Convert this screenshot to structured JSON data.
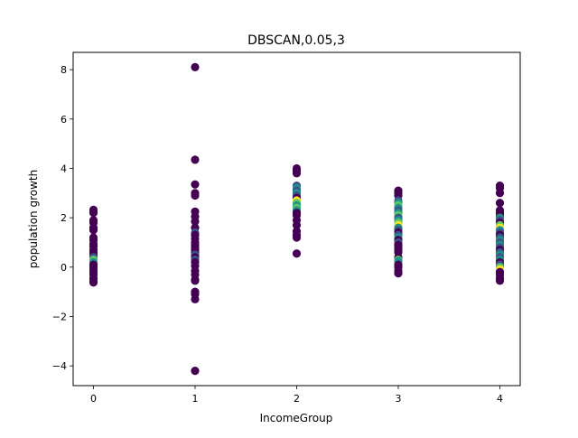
{
  "chart_data": {
    "type": "scatter",
    "title": "DBSCAN,0.05,3",
    "xlabel": "IncomeGroup",
    "ylabel": "population growth",
    "xlim": [
      -0.2,
      4.2
    ],
    "ylim": [
      -4.8,
      8.7
    ],
    "x_ticks": [
      0,
      1,
      2,
      3,
      4
    ],
    "x_tick_labels": [
      "0",
      "1",
      "2",
      "3",
      "4"
    ],
    "y_ticks": [
      -4,
      -2,
      0,
      2,
      4,
      6,
      8
    ],
    "y_tick_labels": [
      "−4",
      "−2",
      "0",
      "2",
      "4",
      "6",
      "8"
    ],
    "grid": false,
    "colormap": "viridis",
    "colors": {
      "noise": "#440154",
      "c1": "#3b528b",
      "c2": "#21918c",
      "c3": "#5ec962",
      "c4": "#fde725"
    },
    "points": [
      {
        "x": 0,
        "y": 2.32,
        "c": "noise"
      },
      {
        "x": 0,
        "y": 2.2,
        "c": "noise"
      },
      {
        "x": 0,
        "y": 1.9,
        "c": "noise"
      },
      {
        "x": 0,
        "y": 1.8,
        "c": "noise"
      },
      {
        "x": 0,
        "y": 1.6,
        "c": "noise"
      },
      {
        "x": 0,
        "y": 1.55,
        "c": "noise"
      },
      {
        "x": 0,
        "y": 1.5,
        "c": "noise"
      },
      {
        "x": 0,
        "y": 1.2,
        "c": "noise"
      },
      {
        "x": 0,
        "y": 1.1,
        "c": "noise"
      },
      {
        "x": 0,
        "y": 0.95,
        "c": "noise"
      },
      {
        "x": 0,
        "y": 0.85,
        "c": "noise"
      },
      {
        "x": 0,
        "y": 0.7,
        "c": "noise"
      },
      {
        "x": 0,
        "y": 0.6,
        "c": "noise"
      },
      {
        "x": 0,
        "y": 0.5,
        "c": "noise"
      },
      {
        "x": 0,
        "y": 0.4,
        "c": "c1"
      },
      {
        "x": 0,
        "y": 0.3,
        "c": "c3"
      },
      {
        "x": 0,
        "y": 0.2,
        "c": "c2"
      },
      {
        "x": 0,
        "y": 0.1,
        "c": "noise"
      },
      {
        "x": 0,
        "y": 0.0,
        "c": "noise"
      },
      {
        "x": 0,
        "y": -0.1,
        "c": "noise"
      },
      {
        "x": 0,
        "y": -0.2,
        "c": "noise"
      },
      {
        "x": 0,
        "y": -0.3,
        "c": "noise"
      },
      {
        "x": 0,
        "y": -0.45,
        "c": "noise"
      },
      {
        "x": 0,
        "y": -0.55,
        "c": "noise"
      },
      {
        "x": 0,
        "y": -0.62,
        "c": "noise"
      },
      {
        "x": 1,
        "y": 8.1,
        "c": "noise"
      },
      {
        "x": 1,
        "y": 4.35,
        "c": "noise"
      },
      {
        "x": 1,
        "y": 3.35,
        "c": "noise"
      },
      {
        "x": 1,
        "y": 3.0,
        "c": "noise"
      },
      {
        "x": 1,
        "y": 2.9,
        "c": "noise"
      },
      {
        "x": 1,
        "y": 2.25,
        "c": "noise"
      },
      {
        "x": 1,
        "y": 2.05,
        "c": "noise"
      },
      {
        "x": 1,
        "y": 1.85,
        "c": "noise"
      },
      {
        "x": 1,
        "y": 1.6,
        "c": "noise"
      },
      {
        "x": 1,
        "y": 1.4,
        "c": "c1"
      },
      {
        "x": 1,
        "y": 1.3,
        "c": "noise"
      },
      {
        "x": 1,
        "y": 1.15,
        "c": "noise"
      },
      {
        "x": 1,
        "y": 1.0,
        "c": "noise"
      },
      {
        "x": 1,
        "y": 0.9,
        "c": "noise"
      },
      {
        "x": 1,
        "y": 0.8,
        "c": "noise"
      },
      {
        "x": 1,
        "y": 0.7,
        "c": "noise"
      },
      {
        "x": 1,
        "y": 0.6,
        "c": "noise"
      },
      {
        "x": 1,
        "y": 0.5,
        "c": "c1"
      },
      {
        "x": 1,
        "y": 0.4,
        "c": "noise"
      },
      {
        "x": 1,
        "y": 0.3,
        "c": "c1"
      },
      {
        "x": 1,
        "y": 0.2,
        "c": "noise"
      },
      {
        "x": 1,
        "y": 0.05,
        "c": "noise"
      },
      {
        "x": 1,
        "y": -0.15,
        "c": "noise"
      },
      {
        "x": 1,
        "y": -0.3,
        "c": "noise"
      },
      {
        "x": 1,
        "y": -0.5,
        "c": "noise"
      },
      {
        "x": 1,
        "y": -0.55,
        "c": "noise"
      },
      {
        "x": 1,
        "y": -1.0,
        "c": "noise"
      },
      {
        "x": 1,
        "y": -1.1,
        "c": "noise"
      },
      {
        "x": 1,
        "y": -1.3,
        "c": "noise"
      },
      {
        "x": 1,
        "y": -4.2,
        "c": "noise"
      },
      {
        "x": 2,
        "y": 4.0,
        "c": "noise"
      },
      {
        "x": 2,
        "y": 3.9,
        "c": "noise"
      },
      {
        "x": 2,
        "y": 3.8,
        "c": "noise"
      },
      {
        "x": 2,
        "y": 3.3,
        "c": "c1"
      },
      {
        "x": 2,
        "y": 3.2,
        "c": "c2"
      },
      {
        "x": 2,
        "y": 3.1,
        "c": "c1"
      },
      {
        "x": 2,
        "y": 3.0,
        "c": "c2"
      },
      {
        "x": 2,
        "y": 2.9,
        "c": "c1"
      },
      {
        "x": 2,
        "y": 2.8,
        "c": "noise"
      },
      {
        "x": 2,
        "y": 2.7,
        "c": "c4"
      },
      {
        "x": 2,
        "y": 2.6,
        "c": "c3"
      },
      {
        "x": 2,
        "y": 2.5,
        "c": "c2"
      },
      {
        "x": 2,
        "y": 2.4,
        "c": "c3"
      },
      {
        "x": 2,
        "y": 2.3,
        "c": "c2"
      },
      {
        "x": 2,
        "y": 2.2,
        "c": "noise"
      },
      {
        "x": 2,
        "y": 2.1,
        "c": "noise"
      },
      {
        "x": 2,
        "y": 1.9,
        "c": "noise"
      },
      {
        "x": 2,
        "y": 1.7,
        "c": "noise"
      },
      {
        "x": 2,
        "y": 1.45,
        "c": "noise"
      },
      {
        "x": 2,
        "y": 1.3,
        "c": "noise"
      },
      {
        "x": 2,
        "y": 1.2,
        "c": "noise"
      },
      {
        "x": 2,
        "y": 0.55,
        "c": "noise"
      },
      {
        "x": 3,
        "y": 3.1,
        "c": "noise"
      },
      {
        "x": 3,
        "y": 3.0,
        "c": "noise"
      },
      {
        "x": 3,
        "y": 2.9,
        "c": "noise"
      },
      {
        "x": 3,
        "y": 2.7,
        "c": "c1"
      },
      {
        "x": 3,
        "y": 2.6,
        "c": "c2"
      },
      {
        "x": 3,
        "y": 2.5,
        "c": "c3"
      },
      {
        "x": 3,
        "y": 2.4,
        "c": "c2"
      },
      {
        "x": 3,
        "y": 2.3,
        "c": "c1"
      },
      {
        "x": 3,
        "y": 2.2,
        "c": "c2"
      },
      {
        "x": 3,
        "y": 2.1,
        "c": "c3"
      },
      {
        "x": 3,
        "y": 2.0,
        "c": "c1"
      },
      {
        "x": 3,
        "y": 1.9,
        "c": "c2"
      },
      {
        "x": 3,
        "y": 1.8,
        "c": "c3"
      },
      {
        "x": 3,
        "y": 1.7,
        "c": "c4"
      },
      {
        "x": 3,
        "y": 1.6,
        "c": "c2"
      },
      {
        "x": 3,
        "y": 1.5,
        "c": "c1"
      },
      {
        "x": 3,
        "y": 1.4,
        "c": "noise"
      },
      {
        "x": 3,
        "y": 1.3,
        "c": "c1"
      },
      {
        "x": 3,
        "y": 1.2,
        "c": "c2"
      },
      {
        "x": 3,
        "y": 1.1,
        "c": "noise"
      },
      {
        "x": 3,
        "y": 1.0,
        "c": "c1"
      },
      {
        "x": 3,
        "y": 0.9,
        "c": "noise"
      },
      {
        "x": 3,
        "y": 0.8,
        "c": "noise"
      },
      {
        "x": 3,
        "y": 0.7,
        "c": "noise"
      },
      {
        "x": 3,
        "y": 0.6,
        "c": "noise"
      },
      {
        "x": 3,
        "y": 0.4,
        "c": "noise"
      },
      {
        "x": 3,
        "y": 0.3,
        "c": "c3"
      },
      {
        "x": 3,
        "y": 0.25,
        "c": "c2"
      },
      {
        "x": 3,
        "y": 0.1,
        "c": "noise"
      },
      {
        "x": 3,
        "y": 0.0,
        "c": "noise"
      },
      {
        "x": 3,
        "y": -0.15,
        "c": "noise"
      },
      {
        "x": 3,
        "y": -0.25,
        "c": "noise"
      },
      {
        "x": 4,
        "y": 3.3,
        "c": "noise"
      },
      {
        "x": 4,
        "y": 3.2,
        "c": "noise"
      },
      {
        "x": 4,
        "y": 3.0,
        "c": "noise"
      },
      {
        "x": 4,
        "y": 2.6,
        "c": "noise"
      },
      {
        "x": 4,
        "y": 2.3,
        "c": "noise"
      },
      {
        "x": 4,
        "y": 2.2,
        "c": "noise"
      },
      {
        "x": 4,
        "y": 2.1,
        "c": "noise"
      },
      {
        "x": 4,
        "y": 2.0,
        "c": "c2"
      },
      {
        "x": 4,
        "y": 1.9,
        "c": "c1"
      },
      {
        "x": 4,
        "y": 1.8,
        "c": "noise"
      },
      {
        "x": 4,
        "y": 1.7,
        "c": "c3"
      },
      {
        "x": 4,
        "y": 1.6,
        "c": "c4"
      },
      {
        "x": 4,
        "y": 1.5,
        "c": "c2"
      },
      {
        "x": 4,
        "y": 1.4,
        "c": "c1"
      },
      {
        "x": 4,
        "y": 1.3,
        "c": "noise"
      },
      {
        "x": 4,
        "y": 1.2,
        "c": "c1"
      },
      {
        "x": 4,
        "y": 1.1,
        "c": "c2"
      },
      {
        "x": 4,
        "y": 1.0,
        "c": "c1"
      },
      {
        "x": 4,
        "y": 0.9,
        "c": "c2"
      },
      {
        "x": 4,
        "y": 0.8,
        "c": "c1"
      },
      {
        "x": 4,
        "y": 0.7,
        "c": "noise"
      },
      {
        "x": 4,
        "y": 0.6,
        "c": "c1"
      },
      {
        "x": 4,
        "y": 0.5,
        "c": "c2"
      },
      {
        "x": 4,
        "y": 0.4,
        "c": "c1"
      },
      {
        "x": 4,
        "y": 0.3,
        "c": "c2"
      },
      {
        "x": 4,
        "y": 0.2,
        "c": "noise"
      },
      {
        "x": 4,
        "y": 0.1,
        "c": "c1"
      },
      {
        "x": 4,
        "y": 0.0,
        "c": "c3"
      },
      {
        "x": 4,
        "y": -0.1,
        "c": "c4"
      },
      {
        "x": 4,
        "y": -0.2,
        "c": "noise"
      },
      {
        "x": 4,
        "y": -0.3,
        "c": "noise"
      },
      {
        "x": 4,
        "y": -0.45,
        "c": "noise"
      },
      {
        "x": 4,
        "y": -0.55,
        "c": "noise"
      }
    ]
  }
}
